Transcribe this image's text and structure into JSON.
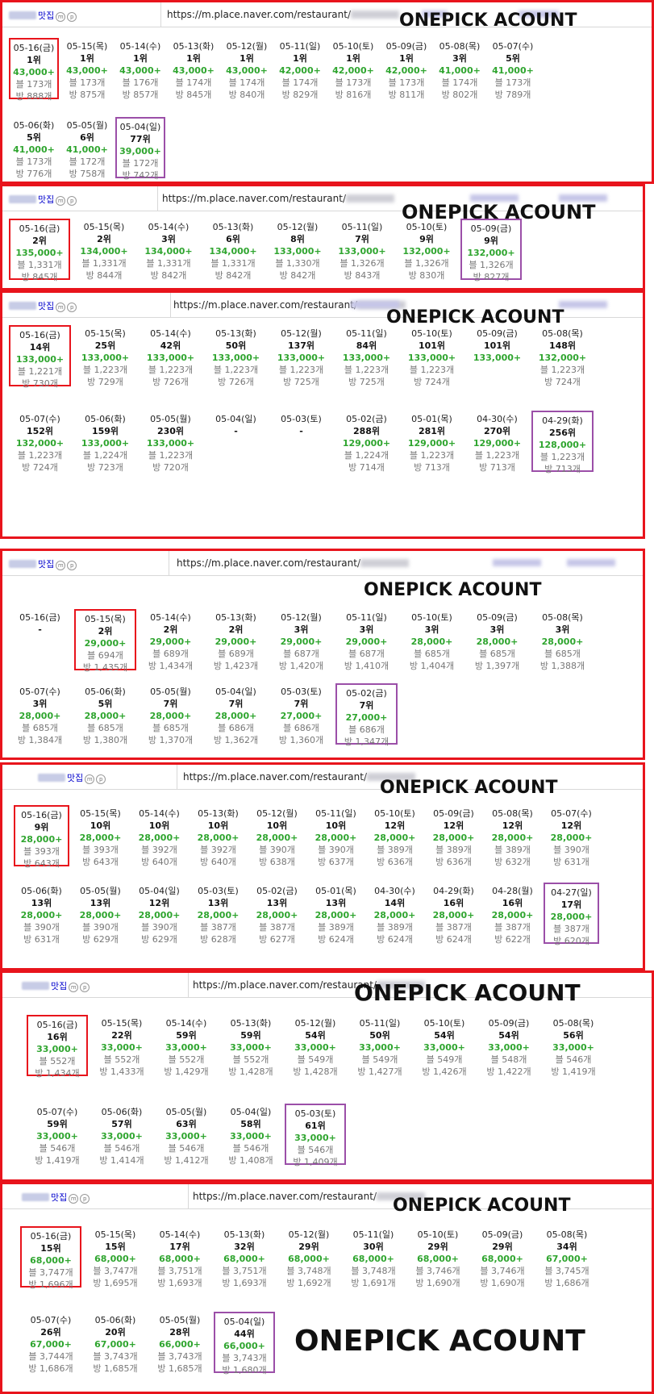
{
  "keyword": "맛집",
  "url": "https://m.place.naver.com/restaurant/",
  "watermark": "ONEPICK ACOUNT",
  "panels": [
    {
      "rows": [
        [
          [
            "05-16(금)",
            "1위",
            "43,000+",
            "블 173개",
            "방 888개",
            "red"
          ],
          [
            "05-15(목)",
            "1위",
            "43,000+",
            "블 173개",
            "방 875개",
            ""
          ],
          [
            "05-14(수)",
            "1위",
            "43,000+",
            "블 176개",
            "방 857개",
            ""
          ],
          [
            "05-13(화)",
            "1위",
            "43,000+",
            "블 174개",
            "방 845개",
            ""
          ],
          [
            "05-12(월)",
            "1위",
            "43,000+",
            "블 174개",
            "방 840개",
            ""
          ],
          [
            "05-11(일)",
            "1위",
            "42,000+",
            "블 174개",
            "방 829개",
            ""
          ],
          [
            "05-10(토)",
            "1위",
            "42,000+",
            "블 173개",
            "방 816개",
            ""
          ],
          [
            "05-09(금)",
            "1위",
            "42,000+",
            "블 173개",
            "방 811개",
            ""
          ],
          [
            "05-08(목)",
            "3위",
            "41,000+",
            "블 174개",
            "방 802개",
            ""
          ],
          [
            "05-07(수)",
            "5위",
            "41,000+",
            "블 173개",
            "방 789개",
            ""
          ]
        ],
        [
          [
            "05-06(화)",
            "5위",
            "41,000+",
            "블 173개",
            "방 776개",
            ""
          ],
          [
            "05-05(월)",
            "6위",
            "41,000+",
            "블 172개",
            "방 758개",
            ""
          ],
          [
            "05-04(일)",
            "77위",
            "39,000+",
            "블 172개",
            "방 742개",
            "purple"
          ]
        ]
      ]
    },
    {
      "rows": [
        [
          [
            "05-16(금)",
            "2위",
            "135,000+",
            "블 1,331개",
            "방 845개",
            "red"
          ],
          [
            "05-15(목)",
            "2위",
            "134,000+",
            "블 1,331개",
            "방 844개",
            ""
          ],
          [
            "05-14(수)",
            "3위",
            "134,000+",
            "블 1,331개",
            "방 842개",
            ""
          ],
          [
            "05-13(화)",
            "6위",
            "134,000+",
            "블 1,331개",
            "방 842개",
            ""
          ],
          [
            "05-12(월)",
            "8위",
            "133,000+",
            "블 1,330개",
            "방 842개",
            ""
          ],
          [
            "05-11(일)",
            "7위",
            "133,000+",
            "블 1,326개",
            "방 843개",
            ""
          ],
          [
            "05-10(토)",
            "9위",
            "132,000+",
            "블 1,326개",
            "방 830개",
            ""
          ],
          [
            "05-09(금)",
            "9위",
            "132,000+",
            "블 1,326개",
            "방 827개",
            "purple"
          ]
        ]
      ]
    },
    {
      "rows": [
        [
          [
            "05-16(금)",
            "14위",
            "133,000+",
            "블 1,221개",
            "방 730개",
            "red"
          ],
          [
            "05-15(목)",
            "25위",
            "133,000+",
            "블 1,223개",
            "방 729개",
            ""
          ],
          [
            "05-14(수)",
            "42위",
            "133,000+",
            "블 1,223개",
            "방 726개",
            ""
          ],
          [
            "05-13(화)",
            "50위",
            "133,000+",
            "블 1,223개",
            "방 726개",
            ""
          ],
          [
            "05-12(월)",
            "137위",
            "133,000+",
            "블 1,223개",
            "방 725개",
            ""
          ],
          [
            "05-11(일)",
            "84위",
            "133,000+",
            "블 1,223개",
            "방 725개",
            ""
          ],
          [
            "05-10(토)",
            "101위",
            "133,000+",
            "블 1,223개",
            "방 724개",
            ""
          ],
          [
            "05-09(금)",
            "101위",
            "133,000+",
            "",
            "",
            ""
          ],
          [
            "05-08(목)",
            "148위",
            "132,000+",
            "블 1,223개",
            "방 724개",
            ""
          ]
        ],
        [
          [
            "05-07(수)",
            "152위",
            "132,000+",
            "블 1,223개",
            "방 724개",
            ""
          ],
          [
            "05-06(화)",
            "159위",
            "133,000+",
            "블 1,224개",
            "방 723개",
            ""
          ],
          [
            "05-05(월)",
            "230위",
            "133,000+",
            "블 1,223개",
            "방 720개",
            ""
          ],
          [
            "05-04(일)",
            "-",
            "",
            "",
            "",
            ""
          ],
          [
            "05-03(토)",
            "-",
            "",
            "",
            "",
            ""
          ],
          [
            "05-02(금)",
            "288위",
            "129,000+",
            "블 1,224개",
            "방 714개",
            ""
          ],
          [
            "05-01(목)",
            "281위",
            "129,000+",
            "블 1,223개",
            "방 713개",
            ""
          ],
          [
            "04-30(수)",
            "270위",
            "129,000+",
            "블 1,223개",
            "방 713개",
            ""
          ],
          [
            "04-29(화)",
            "256위",
            "128,000+",
            "블 1,223개",
            "방 713개",
            "purple"
          ]
        ]
      ]
    },
    {
      "rows": [
        [
          [
            "05-16(금)",
            "-",
            "",
            "",
            "",
            ""
          ],
          [
            "05-15(목)",
            "2위",
            "29,000+",
            "블 694개",
            "방 1,435개",
            "red"
          ],
          [
            "05-14(수)",
            "2위",
            "29,000+",
            "블 689개",
            "방 1,434개",
            ""
          ],
          [
            "05-13(화)",
            "2위",
            "29,000+",
            "블 689개",
            "방 1,423개",
            ""
          ],
          [
            "05-12(월)",
            "3위",
            "29,000+",
            "블 687개",
            "방 1,420개",
            ""
          ],
          [
            "05-11(일)",
            "3위",
            "29,000+",
            "블 687개",
            "방 1,410개",
            ""
          ],
          [
            "05-10(토)",
            "3위",
            "28,000+",
            "블 685개",
            "방 1,404개",
            ""
          ],
          [
            "05-09(금)",
            "3위",
            "28,000+",
            "블 685개",
            "방 1,397개",
            ""
          ],
          [
            "05-08(목)",
            "3위",
            "28,000+",
            "블 685개",
            "방 1,388개",
            ""
          ]
        ],
        [
          [
            "05-07(수)",
            "3위",
            "28,000+",
            "블 685개",
            "방 1,384개",
            ""
          ],
          [
            "05-06(화)",
            "5위",
            "28,000+",
            "블 685개",
            "방 1,380개",
            ""
          ],
          [
            "05-05(월)",
            "7위",
            "28,000+",
            "블 685개",
            "방 1,370개",
            ""
          ],
          [
            "05-04(일)",
            "7위",
            "28,000+",
            "블 686개",
            "방 1,362개",
            ""
          ],
          [
            "05-03(토)",
            "7위",
            "27,000+",
            "블 686개",
            "방 1,360개",
            ""
          ],
          [
            "05-02(금)",
            "7위",
            "27,000+",
            "블 686개",
            "방 1,347개",
            "purple"
          ]
        ]
      ]
    },
    {
      "rows": [
        [
          [
            "05-16(금)",
            "9위",
            "28,000+",
            "블 393개",
            "방 643개",
            "red"
          ],
          [
            "05-15(목)",
            "10위",
            "28,000+",
            "블 393개",
            "방 643개",
            ""
          ],
          [
            "05-14(수)",
            "10위",
            "28,000+",
            "블 392개",
            "방 640개",
            ""
          ],
          [
            "05-13(화)",
            "10위",
            "28,000+",
            "블 392개",
            "방 640개",
            ""
          ],
          [
            "05-12(월)",
            "10위",
            "28,000+",
            "블 390개",
            "방 638개",
            ""
          ],
          [
            "05-11(일)",
            "10위",
            "28,000+",
            "블 390개",
            "방 637개",
            ""
          ],
          [
            "05-10(토)",
            "12위",
            "28,000+",
            "블 389개",
            "방 636개",
            ""
          ],
          [
            "05-09(금)",
            "12위",
            "28,000+",
            "블 389개",
            "방 636개",
            ""
          ],
          [
            "05-08(목)",
            "12위",
            "28,000+",
            "블 389개",
            "방 632개",
            ""
          ],
          [
            "05-07(수)",
            "12위",
            "28,000+",
            "블 390개",
            "방 631개",
            ""
          ]
        ],
        [
          [
            "05-06(화)",
            "13위",
            "28,000+",
            "블 390개",
            "방 631개",
            ""
          ],
          [
            "05-05(월)",
            "13위",
            "28,000+",
            "블 390개",
            "방 629개",
            ""
          ],
          [
            "05-04(일)",
            "12위",
            "28,000+",
            "블 390개",
            "방 629개",
            ""
          ],
          [
            "05-03(토)",
            "13위",
            "28,000+",
            "블 387개",
            "방 628개",
            ""
          ],
          [
            "05-02(금)",
            "13위",
            "28,000+",
            "블 387개",
            "방 627개",
            ""
          ],
          [
            "05-01(목)",
            "13위",
            "28,000+",
            "블 389개",
            "방 624개",
            ""
          ],
          [
            "04-30(수)",
            "14위",
            "28,000+",
            "블 389개",
            "방 624개",
            ""
          ],
          [
            "04-29(화)",
            "16위",
            "28,000+",
            "블 387개",
            "방 624개",
            ""
          ],
          [
            "04-28(월)",
            "16위",
            "28,000+",
            "블 387개",
            "방 622개",
            ""
          ],
          [
            "04-27(일)",
            "17위",
            "28,000+",
            "블 387개",
            "방 620개",
            "purple"
          ]
        ]
      ]
    },
    {
      "rows": [
        [
          [
            "05-16(금)",
            "16위",
            "33,000+",
            "블 552개",
            "방 1,434개",
            "red"
          ],
          [
            "05-15(목)",
            "22위",
            "33,000+",
            "블 552개",
            "방 1,433개",
            ""
          ],
          [
            "05-14(수)",
            "59위",
            "33,000+",
            "블 552개",
            "방 1,429개",
            ""
          ],
          [
            "05-13(화)",
            "59위",
            "33,000+",
            "블 552개",
            "방 1,428개",
            ""
          ],
          [
            "05-12(월)",
            "54위",
            "33,000+",
            "블 549개",
            "방 1,428개",
            ""
          ],
          [
            "05-11(일)",
            "50위",
            "33,000+",
            "블 549개",
            "방 1,427개",
            ""
          ],
          [
            "05-10(토)",
            "54위",
            "33,000+",
            "블 549개",
            "방 1,426개",
            ""
          ],
          [
            "05-09(금)",
            "54위",
            "33,000+",
            "블 548개",
            "방 1,422개",
            ""
          ],
          [
            "05-08(목)",
            "56위",
            "33,000+",
            "블 546개",
            "방 1,419개",
            ""
          ]
        ],
        [
          [
            "05-07(수)",
            "59위",
            "33,000+",
            "블 546개",
            "방 1,419개",
            ""
          ],
          [
            "05-06(화)",
            "57위",
            "33,000+",
            "블 546개",
            "방 1,414개",
            ""
          ],
          [
            "05-05(월)",
            "63위",
            "33,000+",
            "블 546개",
            "방 1,412개",
            ""
          ],
          [
            "05-04(일)",
            "58위",
            "33,000+",
            "블 546개",
            "방 1,408개",
            ""
          ],
          [
            "05-03(토)",
            "61위",
            "33,000+",
            "블 546개",
            "방 1,409개",
            "purple"
          ]
        ]
      ]
    },
    {
      "rows": [
        [
          [
            "05-16(금)",
            "15위",
            "68,000+",
            "블 3,747개",
            "방 1,696개",
            "red"
          ],
          [
            "05-15(목)",
            "15위",
            "68,000+",
            "블 3,747개",
            "방 1,695개",
            ""
          ],
          [
            "05-14(수)",
            "17위",
            "68,000+",
            "블 3,751개",
            "방 1,693개",
            ""
          ],
          [
            "05-13(화)",
            "32위",
            "68,000+",
            "블 3,751개",
            "방 1,693개",
            ""
          ],
          [
            "05-12(월)",
            "29위",
            "68,000+",
            "블 3,748개",
            "방 1,692개",
            ""
          ],
          [
            "05-11(일)",
            "30위",
            "68,000+",
            "블 3,748개",
            "방 1,691개",
            ""
          ],
          [
            "05-10(토)",
            "29위",
            "68,000+",
            "블 3,746개",
            "방 1,690개",
            ""
          ],
          [
            "05-09(금)",
            "29위",
            "68,000+",
            "블 3,746개",
            "방 1,690개",
            ""
          ],
          [
            "05-08(목)",
            "34위",
            "67,000+",
            "블 3,745개",
            "방 1,686개",
            ""
          ]
        ],
        [
          [
            "05-07(수)",
            "26위",
            "67,000+",
            "블 3,744개",
            "방 1,686개",
            ""
          ],
          [
            "05-06(화)",
            "20위",
            "67,000+",
            "블 3,743개",
            "방 1,685개",
            ""
          ],
          [
            "05-05(월)",
            "28위",
            "66,000+",
            "블 3,743개",
            "방 1,685개",
            ""
          ],
          [
            "05-04(일)",
            "44위",
            "66,000+",
            "블 3,743개",
            "방 1,680개",
            "purple"
          ]
        ]
      ]
    }
  ]
}
